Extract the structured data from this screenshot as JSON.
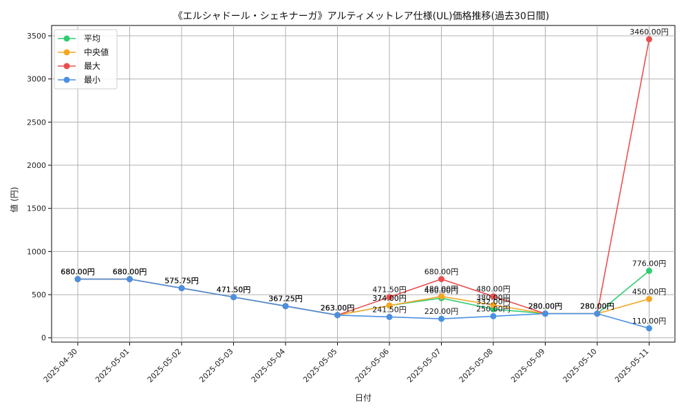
{
  "chart_data": {
    "type": "line",
    "title": "《エルシャドール・シェキナーガ》アルティメットレア仕様(UL)価格推移(過去30日間)",
    "xlabel": "日付",
    "ylabel": "値 (円)",
    "categories": [
      "2025-04-30",
      "2025-05-01",
      "2025-05-02",
      "2025-05-03",
      "2025-05-04",
      "2025-05-05",
      "2025-05-06",
      "2025-05-07",
      "2025-05-08",
      "2025-05-09",
      "2025-05-10",
      "2025-05-11"
    ],
    "ylim": [
      -50,
      3620
    ],
    "yticks": [
      0,
      500,
      1000,
      1500,
      2000,
      2500,
      3000,
      3500
    ],
    "grid": true,
    "legend_position": "top-left",
    "series": [
      {
        "name": "平均",
        "color": "#2ecc71",
        "values": [
          680.0,
          680.0,
          575.75,
          471.5,
          367.25,
          263.0,
          374.0,
          460.0,
          332.0,
          280.0,
          280.0,
          776.0
        ],
        "labels": [
          "680.00円",
          "680.00円",
          "575.75円",
          "471.50円",
          "367.25円",
          "263.00円",
          "374.00円",
          "460.00円",
          "332.00円",
          "280.00円",
          "280.00円",
          "776.00円"
        ]
      },
      {
        "name": "中央値",
        "color": "#f5a623",
        "values": [
          680.0,
          680.0,
          575.75,
          471.5,
          367.25,
          263.0,
          374.0,
          480.0,
          380.0,
          280.0,
          280.0,
          450.0
        ],
        "labels": [
          "680.00円",
          "680.00円",
          "575.75円",
          "471.50円",
          "367.25円",
          "263.00円",
          "374.00円",
          "480.00円",
          "380.00円",
          "280.00円",
          "280.00円",
          "450.00円"
        ]
      },
      {
        "name": "最大",
        "color": "#e94f4f",
        "values": [
          680.0,
          680.0,
          575.75,
          471.5,
          367.25,
          263.0,
          471.5,
          680.0,
          480.0,
          280.0,
          280.0,
          3460.0
        ],
        "labels": [
          "680.00円",
          "680.00円",
          "575.75円",
          "471.50円",
          "367.25円",
          "263.00円",
          "471.50円",
          "680.00円",
          "480.00円",
          "280.00円",
          "280.00円",
          "3460.00円"
        ]
      },
      {
        "name": "最小",
        "color": "#4a90e2",
        "values": [
          680.0,
          680.0,
          575.75,
          471.5,
          367.25,
          263.0,
          241.5,
          220.0,
          250.0,
          280.0,
          280.0,
          110.0
        ],
        "labels": [
          "680.00円",
          "680.00円",
          "575.75円",
          "471.50円",
          "367.25円",
          "263.00円",
          "241.50円",
          "220.00円",
          "250.00円",
          "280.00円",
          "280.00円",
          "110.00円"
        ]
      }
    ]
  }
}
